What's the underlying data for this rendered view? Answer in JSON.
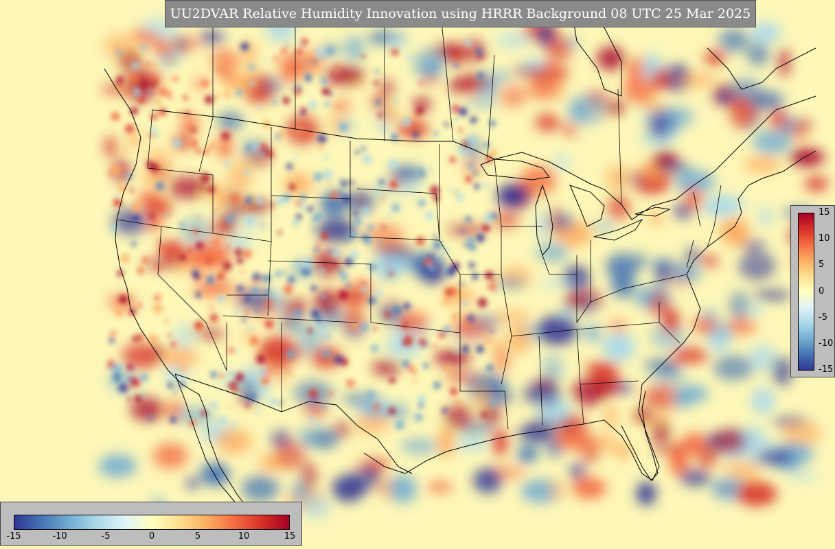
{
  "title": "UU2DVAR Relative Humidity Innovation using HRRR Background 08 UTC 25 Mar 2025",
  "colorbar": {
    "ticks_vertical": [
      "15",
      "10",
      "5",
      "0",
      "-5",
      "-10",
      "-15"
    ],
    "ticks_horizontal": [
      "-15",
      "-10",
      "-5",
      "0",
      "5",
      "10",
      "15"
    ],
    "range": [
      -15,
      15
    ],
    "colors": [
      "#313695",
      "#4575b4",
      "#74add1",
      "#abd9e9",
      "#e0f3f8",
      "#ffffbf",
      "#fee090",
      "#fdae61",
      "#f46d43",
      "#d73027",
      "#a50026"
    ]
  },
  "map": {
    "land_background": "#fdf5b5",
    "border_color": "#000000"
  }
}
